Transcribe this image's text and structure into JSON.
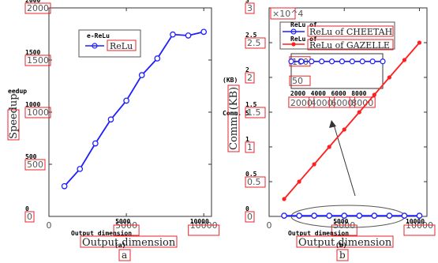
{
  "chart_data": [
    {
      "type": "line",
      "panel_label": "(a)",
      "panel_label_boxed": "a",
      "xlabel": "Output dimension",
      "ylabel": "Speedup",
      "xlim": [
        0,
        10500
      ],
      "ylim": [
        0,
        2000
      ],
      "x_ticks": [
        0,
        5000,
        10000
      ],
      "y_ticks": [
        0,
        500,
        1000,
        1500,
        2000
      ],
      "grid": false,
      "legend_title": "e-ReLu",
      "series": [
        {
          "name": "ReLu",
          "color": "#1f1fff",
          "marker": "circle",
          "x": [
            1000,
            2000,
            3000,
            4000,
            5000,
            6000,
            7000,
            8000,
            9000,
            10000
          ],
          "values": [
            290,
            455,
            700,
            930,
            1110,
            1355,
            1515,
            1745,
            1735,
            1770
          ]
        }
      ],
      "overlay_text": {
        "ylabel_left": "eedup",
        "xlabel": "Output dimension"
      }
    },
    {
      "type": "line",
      "panel_label": "(b)",
      "panel_label_boxed": "b",
      "xlabel": "Output dimension",
      "ylabel": "Comm. (KB)",
      "xlim": [
        0,
        10500
      ],
      "ylim": [
        0,
        30000
      ],
      "y_multiplier": "×10^4",
      "x_ticks": [
        0,
        5000,
        10000
      ],
      "y_ticks": [
        0,
        0.5,
        1,
        1.5,
        2,
        2.5,
        3
      ],
      "grid": false,
      "series": [
        {
          "name": "ReLu of CHEETAH",
          "color": "#1f1fff",
          "marker": "circle",
          "x": [
            1000,
            2000,
            3000,
            4000,
            5000,
            6000,
            7000,
            8000,
            9000,
            10000
          ],
          "values": [
            100,
            100,
            100,
            100,
            100,
            100,
            100,
            100,
            100,
            100
          ]
        },
        {
          "name": "ReLu of GAZELLE",
          "color": "#ff1f1f",
          "marker": "star",
          "x": [
            1000,
            2000,
            3000,
            4000,
            5000,
            6000,
            7000,
            8000,
            9000,
            10000
          ],
          "values": [
            2500,
            5000,
            7500,
            10000,
            12500,
            15000,
            17500,
            20000,
            22500,
            25000
          ]
        }
      ],
      "inset": {
        "x_ticks": [
          2000,
          4000,
          6000,
          8000
        ],
        "y_ticks": [
          50,
          100
        ],
        "ylim": [
          30,
          120
        ],
        "series_values": [
          100,
          100,
          100,
          100,
          100,
          100,
          100,
          100,
          100,
          100
        ]
      },
      "overlay_text": {
        "top": "(KB)",
        "left": "Comm",
        "xlabel": "Output dimension",
        "legend_1": "ReLu of CHEETAH",
        "legend_2": "ReLu of GAZELLE",
        "legend_short_1": "ReLu of",
        "legend_short_2": "ReLu of",
        "kb": "(KB)",
        "comm_dot": "Comm. 5"
      }
    }
  ]
}
